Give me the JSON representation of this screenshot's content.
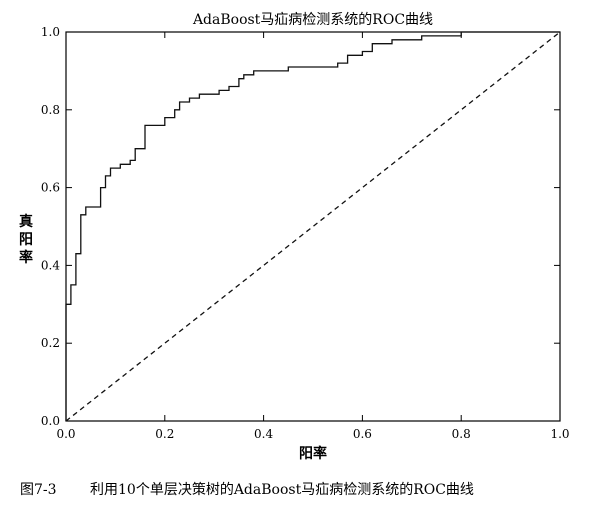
{
  "chart_data": {
    "type": "line",
    "title": "AdaBoost马疝病检测系统的ROC曲线",
    "xlabel": "阳率",
    "ylabel": "真阳率",
    "xlim": [
      0.0,
      1.0
    ],
    "ylim": [
      0.0,
      1.0
    ],
    "x_ticks": [
      "0.0",
      "0.2",
      "0.4",
      "0.6",
      "0.8",
      "1.0"
    ],
    "y_ticks": [
      "0.0",
      "0.2",
      "0.4",
      "0.6",
      "0.8",
      "1.0"
    ],
    "grid": false,
    "series": [
      {
        "style": "solid",
        "color": "#111111",
        "x": [
          0.0,
          0.0,
          0.01,
          0.01,
          0.02,
          0.02,
          0.03,
          0.03,
          0.04,
          0.04,
          0.07,
          0.07,
          0.08,
          0.08,
          0.09,
          0.09,
          0.11,
          0.11,
          0.13,
          0.13,
          0.14,
          0.14,
          0.16,
          0.16,
          0.2,
          0.2,
          0.22,
          0.22,
          0.23,
          0.23,
          0.25,
          0.25,
          0.27,
          0.27,
          0.31,
          0.31,
          0.33,
          0.33,
          0.35,
          0.35,
          0.36,
          0.36,
          0.38,
          0.38,
          0.42,
          0.42,
          0.45,
          0.45,
          0.48,
          0.48,
          0.55,
          0.55,
          0.57,
          0.57,
          0.6,
          0.6,
          0.62,
          0.62,
          0.66,
          0.66,
          0.72,
          0.72,
          0.8,
          0.8,
          0.88,
          0.88,
          1.0
        ],
        "y": [
          0.0,
          0.3,
          0.3,
          0.35,
          0.35,
          0.43,
          0.43,
          0.53,
          0.53,
          0.55,
          0.55,
          0.6,
          0.6,
          0.63,
          0.63,
          0.65,
          0.65,
          0.66,
          0.66,
          0.67,
          0.67,
          0.7,
          0.7,
          0.76,
          0.76,
          0.78,
          0.78,
          0.8,
          0.8,
          0.82,
          0.82,
          0.83,
          0.83,
          0.84,
          0.84,
          0.85,
          0.85,
          0.86,
          0.86,
          0.88,
          0.88,
          0.89,
          0.89,
          0.9,
          0.9,
          0.9,
          0.9,
          0.91,
          0.91,
          0.91,
          0.91,
          0.92,
          0.92,
          0.94,
          0.94,
          0.95,
          0.95,
          0.97,
          0.97,
          0.98,
          0.98,
          0.99,
          0.99,
          1.0,
          1.0,
          1.0,
          1.0
        ]
      },
      {
        "style": "dashed",
        "color": "#111111",
        "x": [
          0.0,
          1.0
        ],
        "y": [
          0.0,
          1.0
        ]
      }
    ]
  },
  "caption": {
    "figure_number": "图7-3",
    "text": "利用10个单层决策树的AdaBoost马疝病检测系统的ROC曲线"
  }
}
